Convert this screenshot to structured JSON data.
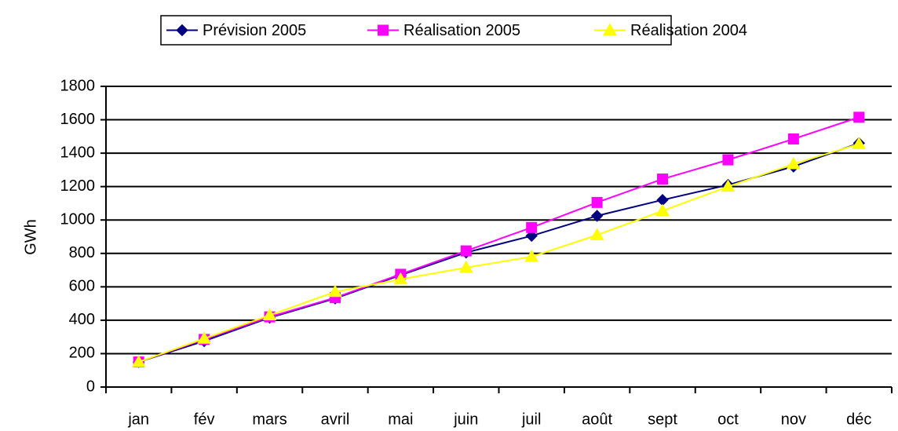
{
  "chart_data": {
    "type": "line",
    "y_label": "GWh",
    "categories": [
      "jan",
      "fév",
      "mars",
      "avril",
      "mai",
      "juin",
      "juil",
      "août",
      "sept",
      "oct",
      "nov",
      "déc"
    ],
    "series": [
      {
        "name": "Prévision 2005",
        "color": "#000080",
        "marker": "diamond",
        "values": [
          150,
          275,
          415,
          530,
          670,
          805,
          905,
          1025,
          1120,
          1210,
          1320,
          1460
        ]
      },
      {
        "name": "Réalisation 2005",
        "color": "#ff00ff",
        "marker": "square",
        "values": [
          150,
          285,
          420,
          535,
          675,
          815,
          955,
          1105,
          1245,
          1360,
          1485,
          1615
        ]
      },
      {
        "name": "Réalisation 2004",
        "color": "#ffff00",
        "marker": "triangle",
        "values": [
          150,
          290,
          430,
          570,
          645,
          715,
          780,
          910,
          1055,
          1200,
          1335,
          1455
        ]
      }
    ],
    "ylim": [
      0,
      1800
    ],
    "yticks": [
      0,
      200,
      400,
      600,
      800,
      1000,
      1200,
      1400,
      1600,
      1800
    ],
    "grid": true,
    "legend": "top"
  }
}
